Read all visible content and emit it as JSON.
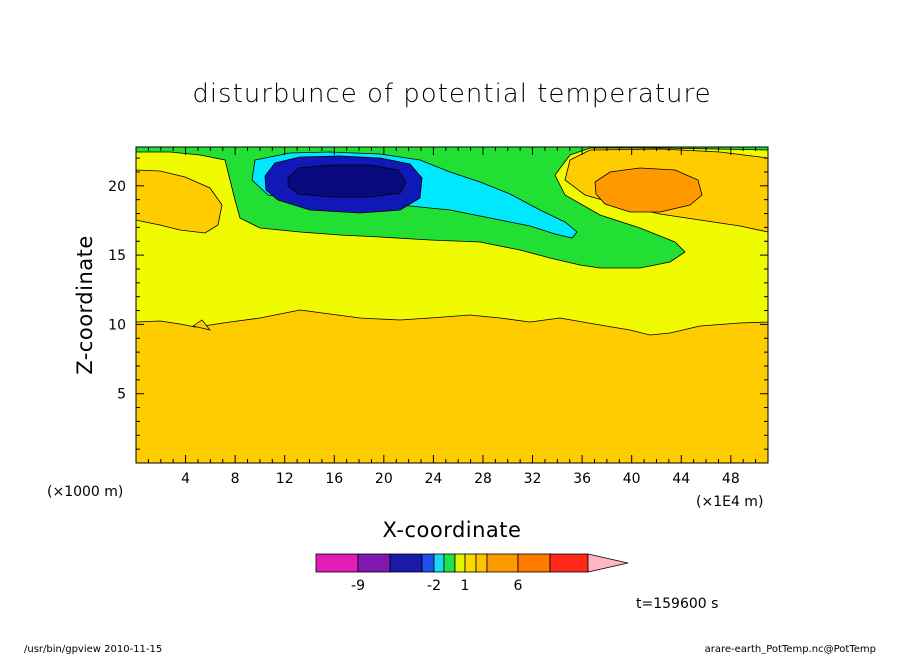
{
  "chart_data": {
    "type": "heatmap",
    "title": "disturbunce of potential temperature",
    "xlabel": "X-coordinate",
    "ylabel": "Z-coordinate",
    "x_units_left": "(×1000 m)",
    "x_units_right": "(×1E4 m)",
    "xlim": [
      0,
      51
    ],
    "ylim": [
      0,
      22.8
    ],
    "x_ticks": [
      4,
      8,
      12,
      16,
      20,
      24,
      28,
      32,
      36,
      40,
      44,
      48
    ],
    "y_ticks": [
      5,
      10,
      15,
      20
    ],
    "time_label": "t=159600 s",
    "colorbar": {
      "tick_labels": [
        "-9",
        "-2",
        "1",
        "6"
      ],
      "colors": [
        "#e21cb6",
        "#7f19b2",
        "#1a1aa8",
        "#1f50ee",
        "#19d8f0",
        "#20e04c",
        "#dcf500",
        "#ffd700",
        "#ffc400",
        "#ff9900",
        "#ff7a00",
        "#ff2a1a",
        "#ff8080",
        "#ffb6c1"
      ]
    },
    "fields": {
      "base_low": "#ffcc00",
      "upper_layer": "#f0fa00",
      "green_region": "#22e033",
      "cyan_region": "#00e8ff",
      "blue_region": "#1118b8",
      "navy_core": "#0a0a80",
      "warm_right": "#ffcc00",
      "orange_core": "#ff9900"
    }
  },
  "footer": {
    "left": "/usr/bin/gpview   2010-11-15",
    "right": "arare-earth_PotTemp.nc@PotTemp"
  }
}
